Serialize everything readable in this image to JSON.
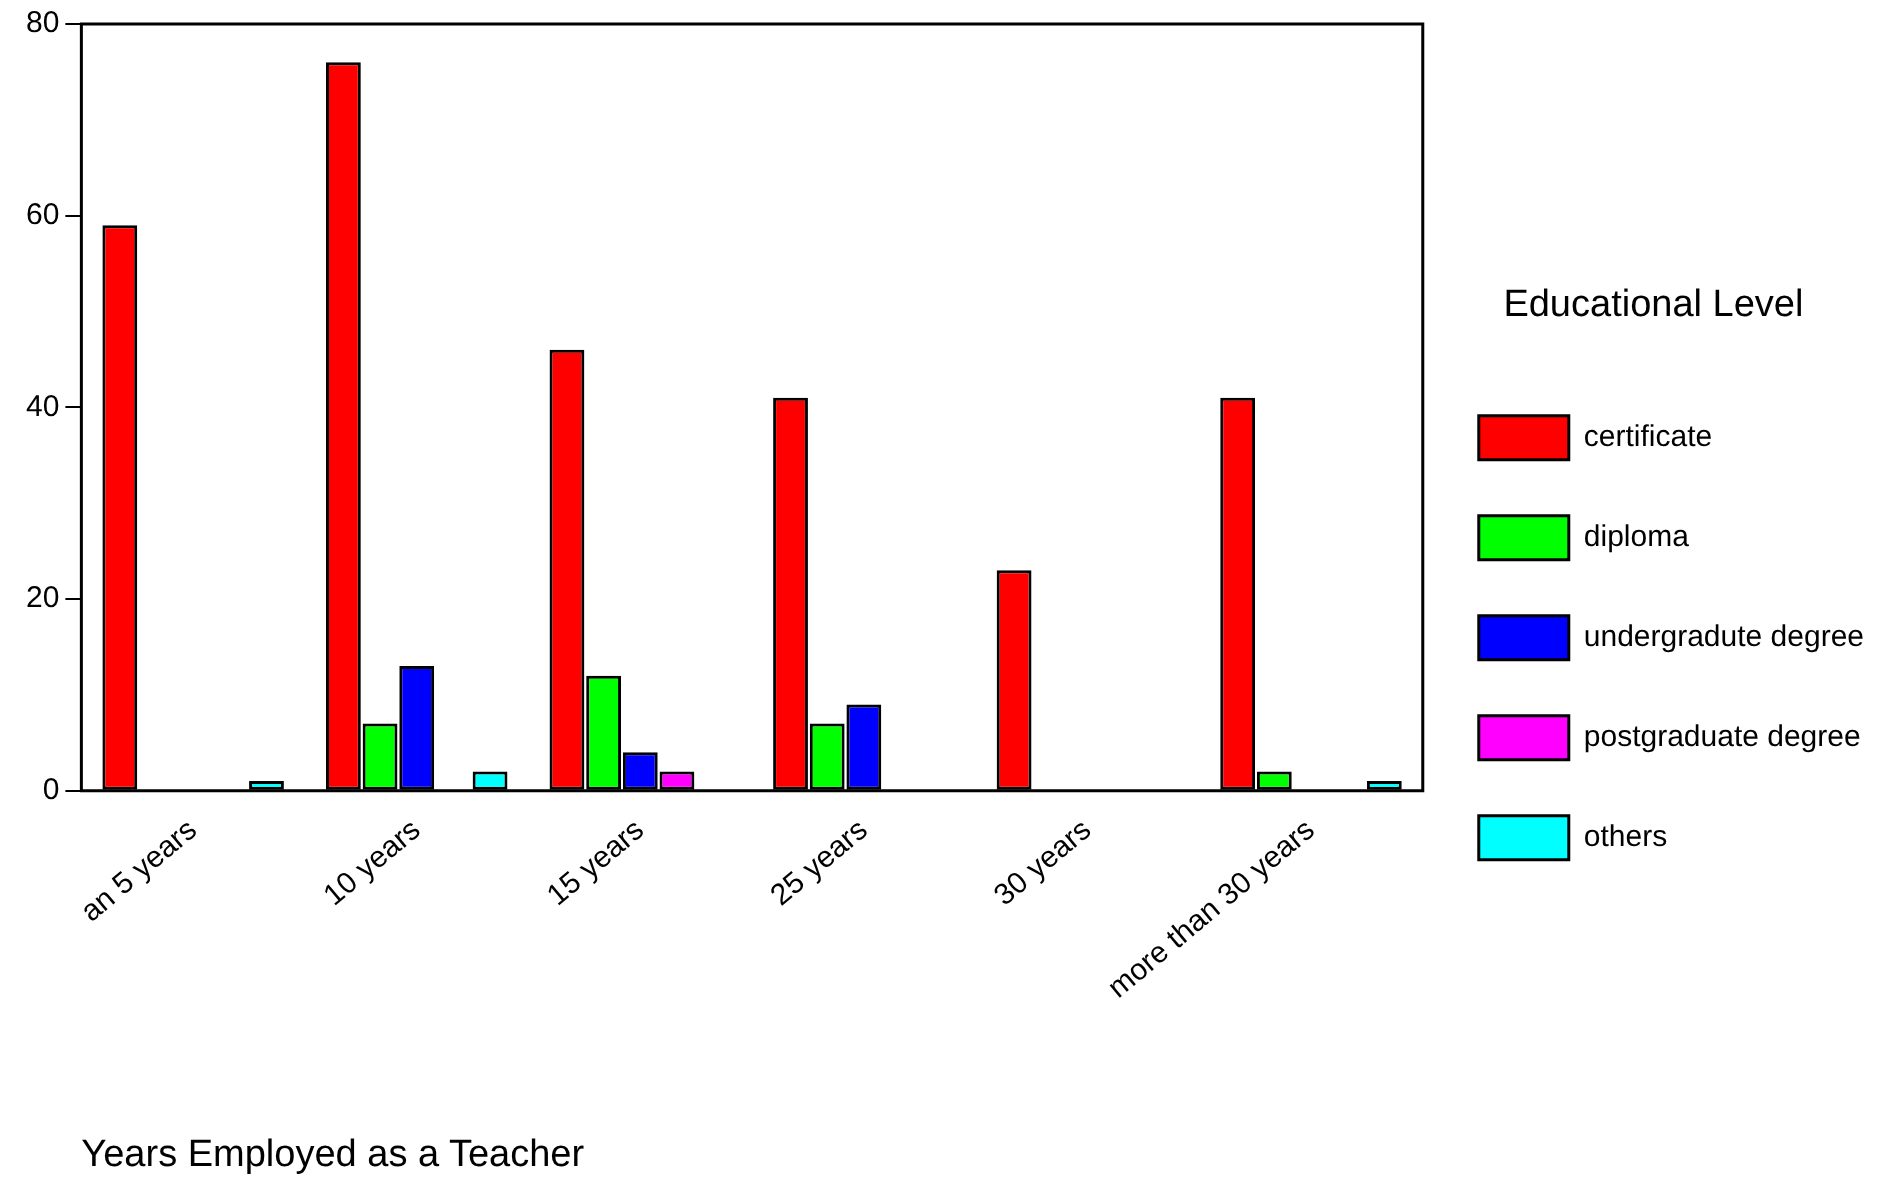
{
  "chart_data": {
    "type": "bar",
    "xlabel": "Years Employed as a Teacher",
    "legend_title": "Educational Level",
    "legend": "right",
    "categories": [
      "an 5 years",
      "10 years",
      "15 years",
      "25 years",
      "30 years",
      "more than 30 years"
    ],
    "series": [
      {
        "name": "certificate",
        "color": "#ff0000",
        "values": [
          59,
          76,
          46,
          41,
          23,
          41
        ]
      },
      {
        "name": "diploma",
        "color": "#00ff00",
        "values": [
          0,
          7,
          12,
          7,
          0,
          2
        ]
      },
      {
        "name": "undergradute degree",
        "color": "#0000ff",
        "values": [
          0,
          13,
          4,
          9,
          0,
          0
        ]
      },
      {
        "name": "postgraduate degree",
        "color": "#ff00ff",
        "values": [
          0,
          0,
          2,
          0,
          0,
          0
        ]
      },
      {
        "name": "others",
        "color": "#00ffff",
        "values": [
          1,
          2,
          0,
          0,
          0,
          1
        ]
      }
    ],
    "ylim": [
      0,
      80
    ],
    "yticks": [
      0,
      20,
      40,
      60,
      80
    ],
    "grid": false
  }
}
